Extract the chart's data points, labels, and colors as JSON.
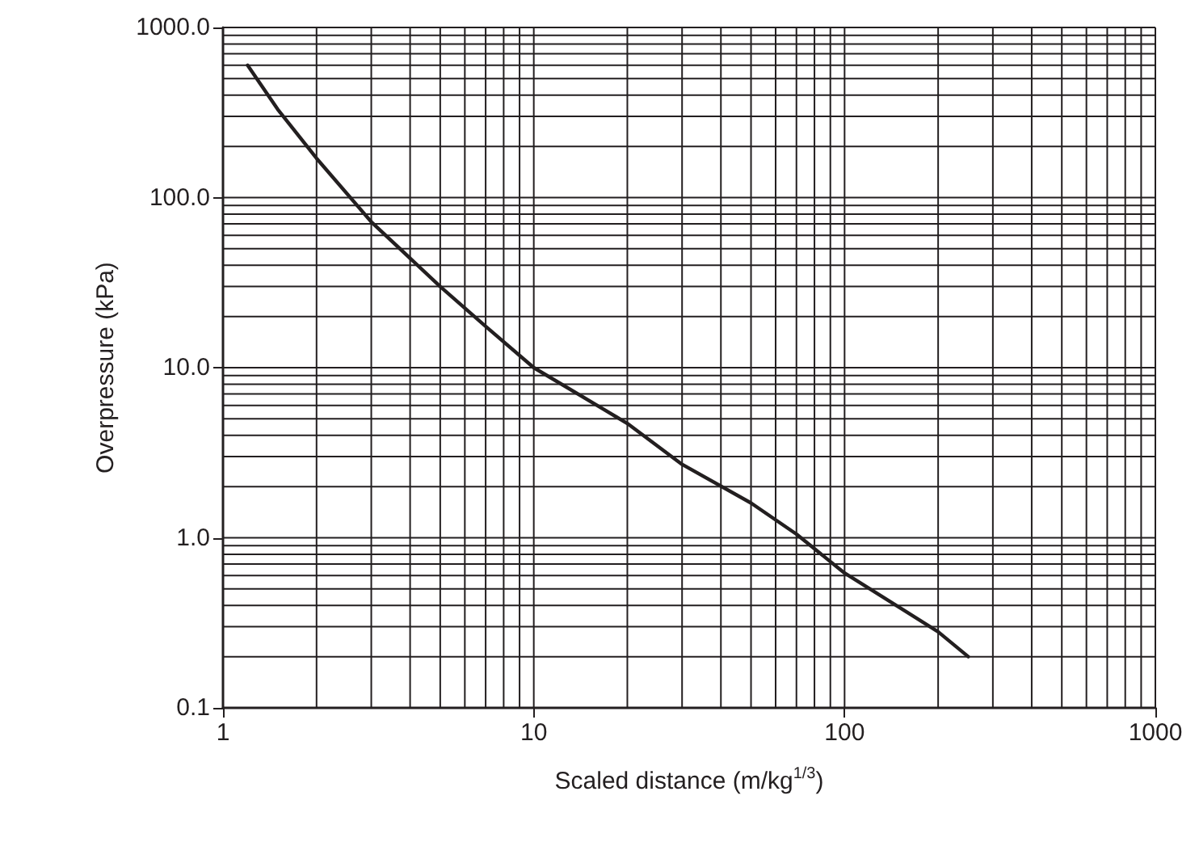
{
  "chart_data": {
    "type": "line",
    "xlabel": "Scaled distance (m/kg$^{1/3}$)",
    "ylabel": "Overpressure (kPa)",
    "x": [
      1.2,
      1.5,
      2,
      3,
      5,
      7,
      10,
      20,
      30,
      50,
      70,
      100,
      150,
      200,
      250
    ],
    "series": [
      {
        "color": "#231f20",
        "values": [
          600,
          330,
          170,
          72,
          30,
          17.5,
          10,
          4.7,
          2.7,
          1.6,
          1.05,
          0.62,
          0.39,
          0.28,
          0.2
        ]
      }
    ],
    "log": "xy",
    "grid": true,
    "marker": "none",
    "line_style": "solid",
    "xlim": [
      1,
      1000
    ],
    "ylim": [
      0.1,
      1000
    ],
    "xticks": [
      1,
      {
        "value": 2,
        "label": null
      },
      {
        "value": 3,
        "label": null
      },
      {
        "value": 4,
        "label": null
      },
      {
        "value": 5,
        "label": null
      },
      {
        "value": 6,
        "label": null
      },
      {
        "value": 7,
        "label": null
      },
      {
        "value": 8,
        "label": null
      },
      {
        "value": 9,
        "label": null
      },
      10,
      {
        "value": 20,
        "label": null
      },
      {
        "value": 30,
        "label": null
      },
      {
        "value": 40,
        "label": null
      },
      {
        "value": 50,
        "label": null
      },
      {
        "value": 60,
        "label": null
      },
      {
        "value": 70,
        "label": null
      },
      {
        "value": 80,
        "label": null
      },
      {
        "value": 90,
        "label": null
      },
      100,
      {
        "value": 200,
        "label": null
      },
      {
        "value": 300,
        "label": null
      },
      {
        "value": 400,
        "label": null
      },
      {
        "value": 500,
        "label": null
      },
      {
        "value": 600,
        "label": null
      },
      {
        "value": 700,
        "label": null
      },
      {
        "value": 800,
        "label": null
      },
      {
        "value": 900,
        "label": null
      },
      1000
    ],
    "yticks": [
      {
        "value": 0.1,
        "label": "0.1"
      },
      {
        "value": 0.2,
        "label": null
      },
      {
        "value": 0.3,
        "label": null
      },
      {
        "value": 0.4,
        "label": null
      },
      {
        "value": 0.5,
        "label": null
      },
      {
        "value": 0.6,
        "label": null
      },
      {
        "value": 0.7,
        "label": null
      },
      {
        "value": 0.8,
        "label": null
      },
      {
        "value": 0.9,
        "label": null
      },
      {
        "value": 1,
        "label": "1.0"
      },
      {
        "value": 2,
        "label": null
      },
      {
        "value": 3,
        "label": null
      },
      {
        "value": 4,
        "label": null
      },
      {
        "value": 5,
        "label": null
      },
      {
        "value": 6,
        "label": null
      },
      {
        "value": 7,
        "label": null
      },
      {
        "value": 8,
        "label": null
      },
      {
        "value": 9,
        "label": null
      },
      {
        "value": 10,
        "label": "10.0"
      },
      {
        "value": 20,
        "label": null
      },
      {
        "value": 30,
        "label": null
      },
      {
        "value": 40,
        "label": null
      },
      {
        "value": 50,
        "label": null
      },
      {
        "value": 60,
        "label": null
      },
      {
        "value": 70,
        "label": null
      },
      {
        "value": 80,
        "label": null
      },
      {
        "value": 90,
        "label": null
      },
      {
        "value": 100,
        "label": "100.0"
      },
      {
        "value": 200,
        "label": null
      },
      {
        "value": 300,
        "label": null
      },
      {
        "value": 400,
        "label": null
      },
      {
        "value": 500,
        "label": null
      },
      {
        "value": 600,
        "label": null
      },
      {
        "value": 700,
        "label": null
      },
      {
        "value": 800,
        "label": null
      },
      {
        "value": 900,
        "label": null
      },
      {
        "value": 1000,
        "label": "1000.0"
      }
    ]
  }
}
